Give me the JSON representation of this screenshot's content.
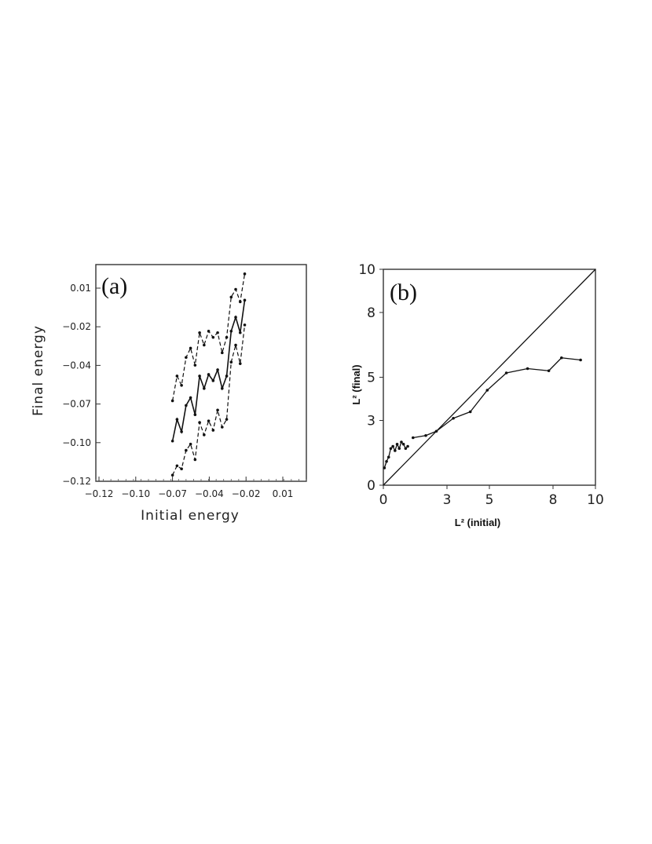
{
  "chart_data": [
    {
      "type": "line",
      "panel_label": "(a)",
      "xlabel": "Initial energy",
      "ylabel": "Final energy",
      "xlim": [
        -0.12,
        0.02
      ],
      "ylim": [
        -0.12,
        0.02
      ],
      "x_ticks": [
        -0.12,
        -0.1,
        -0.07,
        -0.04,
        -0.02,
        0.01
      ],
      "x_tick_labels": [
        "−0.12",
        "−0.10",
        "−0.07",
        "−0.04",
        "−0.02",
        "0.01"
      ],
      "y_tick_labels": [
        "0.01",
        "−0.02",
        "−0.04",
        "−0.07",
        "−0.10",
        "−0.12"
      ],
      "grid": false,
      "x": [
        -0.069,
        -0.066,
        -0.063,
        -0.06,
        -0.057,
        -0.054,
        -0.051,
        -0.048,
        -0.045,
        -0.042,
        -0.039,
        -0.036,
        -0.033,
        -0.03,
        -0.027,
        -0.024,
        -0.021
      ],
      "series": [
        {
          "style": "solid",
          "values": [
            -0.094,
            -0.08,
            -0.088,
            -0.071,
            -0.066,
            -0.077,
            -0.052,
            -0.06,
            -0.051,
            -0.055,
            -0.048,
            -0.06,
            -0.052,
            -0.023,
            -0.014,
            -0.024,
            -0.003
          ]
        },
        {
          "style": "dashed",
          "values": [
            -0.068,
            -0.052,
            -0.058,
            -0.04,
            -0.034,
            -0.045,
            -0.024,
            -0.032,
            -0.023,
            -0.027,
            -0.024,
            -0.037,
            -0.027,
            -0.001,
            0.004,
            -0.004,
            0.014
          ]
        },
        {
          "style": "dashed",
          "values": [
            -0.116,
            -0.11,
            -0.112,
            -0.1,
            -0.096,
            -0.106,
            -0.082,
            -0.09,
            -0.081,
            -0.087,
            -0.074,
            -0.085,
            -0.08,
            -0.043,
            -0.032,
            -0.044,
            -0.019
          ]
        }
      ]
    },
    {
      "type": "line",
      "panel_label": "(b)",
      "xlabel": "L² (initial)",
      "ylabel": "L² (final)",
      "xlim": [
        0,
        10
      ],
      "ylim": [
        0,
        10
      ],
      "x_ticks": [
        0,
        3,
        5,
        8,
        10
      ],
      "y_ticks": [
        0,
        3,
        5,
        8,
        10
      ],
      "grid": false,
      "series": [
        {
          "style": "solid",
          "x": [
            0,
            10
          ],
          "y": [
            0,
            10
          ]
        },
        {
          "style": "solid",
          "x": [
            0.05,
            0.15,
            0.25,
            0.35,
            0.45,
            0.55,
            0.65,
            0.75,
            0.85,
            0.95,
            1.05,
            1.15
          ],
          "y": [
            0.8,
            1.1,
            1.3,
            1.7,
            1.8,
            1.6,
            1.9,
            1.7,
            2.0,
            1.9,
            1.7,
            1.8
          ]
        },
        {
          "style": "solid",
          "x": [
            1.4,
            2.0,
            2.5,
            3.3,
            4.1,
            4.9,
            5.8,
            6.8,
            7.8,
            8.4,
            9.3
          ],
          "y": [
            2.2,
            2.3,
            2.5,
            3.1,
            3.4,
            4.4,
            5.2,
            5.4,
            5.3,
            5.9,
            5.8
          ]
        }
      ]
    }
  ]
}
